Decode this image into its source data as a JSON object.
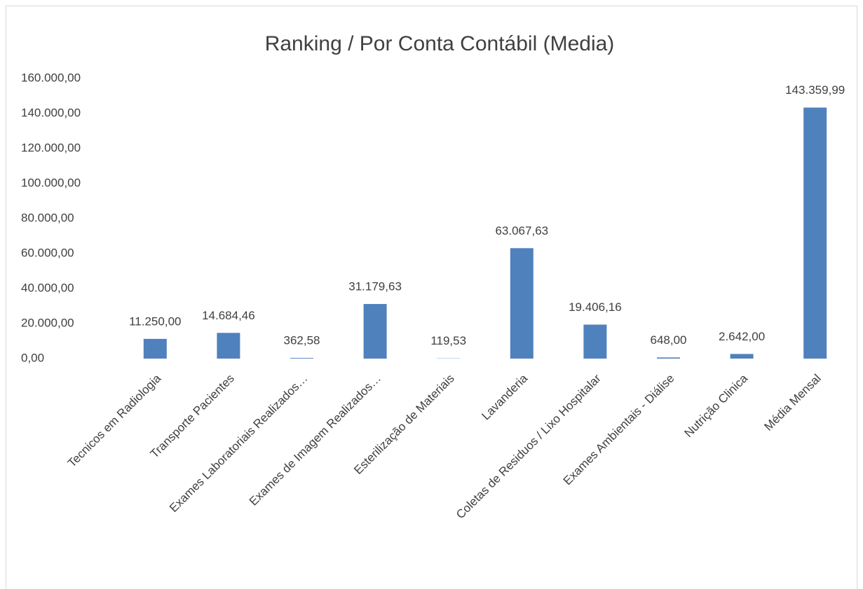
{
  "chart_data": {
    "type": "bar",
    "title": "Ranking / Por Conta Contábil (Media)",
    "categories": [
      "Tecnicos em Radiologia",
      "Transporte Pacientes",
      "Exames Laboratoriais Realizados…",
      "Exames de Imagem Realizados…",
      "Esterilização de Materiais",
      "Lavanderia",
      "Coletas de Residuos / Lixo Hospitalar",
      "Exames Ambientais - Diálise",
      "Nutrição Clinica",
      "Média Mensal"
    ],
    "values": [
      11250,
      14684.46,
      362.58,
      31179.63,
      119.53,
      63067.63,
      19406.16,
      648,
      2642,
      143359.99
    ],
    "value_labels": [
      "11.250,00",
      "14.684,46",
      "362,58",
      "31.179,63",
      "119,53",
      "63.067,63",
      "19.406,16",
      "648,00",
      "2.642,00",
      "143.359,99"
    ],
    "color": "#4f81bd",
    "ylim": [
      0,
      160000
    ],
    "yticks": [
      {
        "value": 0,
        "label": "0,00"
      },
      {
        "value": 20000,
        "label": "20.000,00"
      },
      {
        "value": 40000,
        "label": "40.000,00"
      },
      {
        "value": 60000,
        "label": "60.000,00"
      },
      {
        "value": 80000,
        "label": "80.000,00"
      },
      {
        "value": 100000,
        "label": "100.000,00"
      },
      {
        "value": 120000,
        "label": "120.000,00"
      },
      {
        "value": 140000,
        "label": "140.000,00"
      },
      {
        "value": 160000,
        "label": "160.000,00"
      }
    ],
    "grid": true
  }
}
